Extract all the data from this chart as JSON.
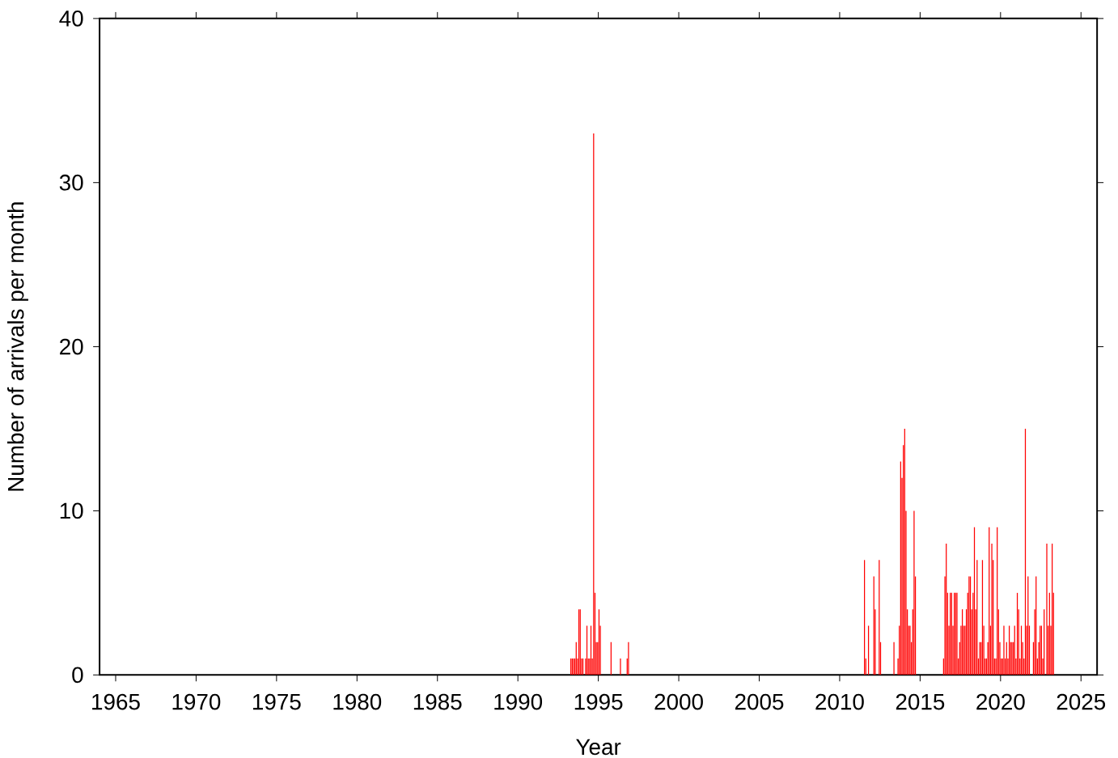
{
  "chart_data": {
    "type": "bar",
    "xlabel": "Year",
    "ylabel": "Number of arrivals per month",
    "xlim": [
      1964,
      2026
    ],
    "xticks": [
      1965,
      1970,
      1975,
      1980,
      1985,
      1990,
      1995,
      2000,
      2005,
      2010,
      2015,
      2020,
      2025
    ],
    "ylim": [
      0,
      40
    ],
    "yticks": [
      0,
      10,
      20,
      30,
      40
    ],
    "color": "#ff0000",
    "x": [
      1993.292,
      1993.375,
      1993.458,
      1993.542,
      1993.625,
      1993.708,
      1993.792,
      1993.875,
      1993.958,
      1994.042,
      1994.208,
      1994.292,
      1994.375,
      1994.458,
      1994.542,
      1994.625,
      1994.708,
      1994.792,
      1994.875,
      1994.958,
      1995.042,
      1995.125,
      1995.792,
      1996.375,
      1996.792,
      1996.875,
      2011.542,
      2011.625,
      2011.792,
      2012.125,
      2012.208,
      2012.458,
      2012.542,
      2013.375,
      2013.625,
      2013.708,
      2013.792,
      2013.875,
      2013.958,
      2014.042,
      2014.125,
      2014.208,
      2014.292,
      2014.375,
      2014.458,
      2014.542,
      2014.625,
      2014.708,
      2016.458,
      2016.542,
      2016.625,
      2016.708,
      2016.792,
      2016.875,
      2016.958,
      2017.042,
      2017.125,
      2017.208,
      2017.292,
      2017.375,
      2017.458,
      2017.542,
      2017.625,
      2017.708,
      2017.792,
      2017.875,
      2017.958,
      2018.042,
      2018.125,
      2018.208,
      2018.292,
      2018.375,
      2018.458,
      2018.542,
      2018.625,
      2018.708,
      2018.792,
      2018.875,
      2018.958,
      2019.042,
      2019.125,
      2019.208,
      2019.292,
      2019.375,
      2019.458,
      2019.542,
      2019.625,
      2019.708,
      2019.792,
      2019.875,
      2019.958,
      2020.042,
      2020.125,
      2020.208,
      2020.292,
      2020.375,
      2020.458,
      2020.542,
      2020.625,
      2020.708,
      2020.792,
      2020.875,
      2020.958,
      2021.042,
      2021.125,
      2021.208,
      2021.292,
      2021.375,
      2021.458,
      2021.542,
      2021.625,
      2021.708,
      2021.792,
      2022.042,
      2022.125,
      2022.208,
      2022.292,
      2022.375,
      2022.458,
      2022.542,
      2022.625,
      2022.708,
      2022.875,
      2022.958,
      2023.042,
      2023.125,
      2023.208,
      2023.292
    ],
    "values": [
      1,
      1,
      1,
      1,
      2,
      1,
      4,
      4,
      1,
      1,
      1,
      3,
      1,
      1,
      3,
      1,
      33,
      5,
      2,
      2,
      4,
      3,
      2,
      1,
      1,
      2,
      7,
      1,
      3,
      6,
      4,
      7,
      2,
      2,
      1,
      3,
      13,
      12,
      14,
      15,
      10,
      4,
      3,
      3,
      2,
      4,
      10,
      6,
      1,
      6,
      8,
      5,
      3,
      5,
      5,
      3,
      5,
      5,
      5,
      1,
      2,
      3,
      4,
      3,
      3,
      4,
      5,
      6,
      6,
      4,
      5,
      9,
      4,
      7,
      1,
      2,
      2,
      7,
      3,
      1,
      1,
      2,
      9,
      3,
      8,
      7,
      1,
      1,
      9,
      4,
      2,
      1,
      1,
      3,
      1,
      2,
      1,
      3,
      2,
      2,
      2,
      3,
      1,
      5,
      4,
      1,
      3,
      2,
      1,
      15,
      3,
      6,
      3,
      2,
      4,
      6,
      1,
      2,
      3,
      3,
      1,
      4,
      8,
      3,
      5,
      3,
      8,
      5
    ]
  }
}
